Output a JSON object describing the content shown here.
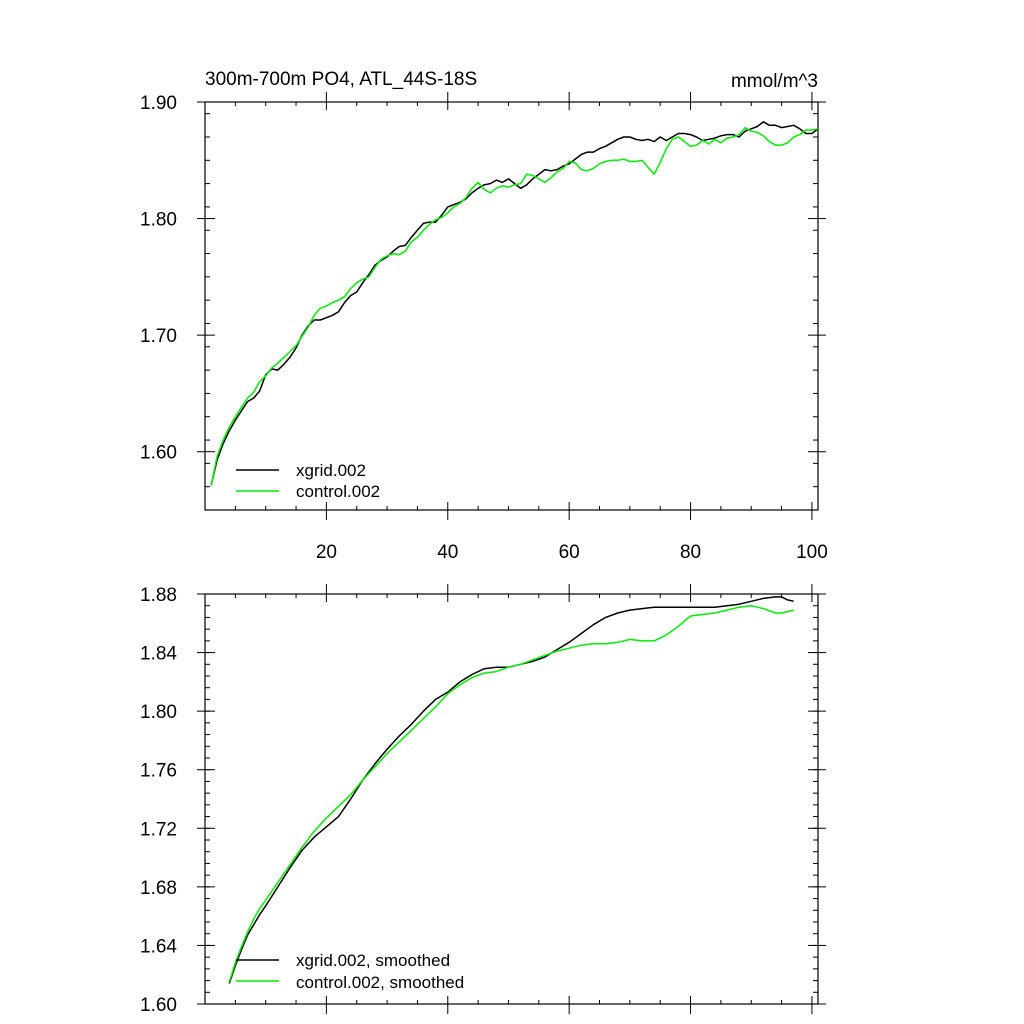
{
  "chart_data": [
    {
      "type": "line",
      "title": "300m-700m PO4, ATL_44S-18S",
      "units": "mmol/m^3",
      "xlabel": "",
      "ylabel": "",
      "xlim": [
        0,
        101
      ],
      "ylim": [
        1.55,
        1.9
      ],
      "xticks": [
        20,
        40,
        60,
        80,
        100
      ],
      "yticks": [
        1.6,
        1.7,
        1.8,
        1.9
      ],
      "ytick_labels": [
        "1.60",
        "1.70",
        "1.80",
        "1.90"
      ],
      "xtick_labels": [
        "20",
        "40",
        "60",
        "80",
        "100"
      ],
      "legend_position": "bottom-left",
      "series": [
        {
          "name": "xgrid.002",
          "color": "#000000",
          "x": [
            1,
            2,
            3,
            4,
            5,
            6,
            7,
            8,
            9,
            10,
            11,
            12,
            13,
            14,
            15,
            16,
            17,
            18,
            19,
            20,
            21,
            22,
            23,
            24,
            25,
            26,
            27,
            28,
            29,
            30,
            31,
            32,
            33,
            34,
            35,
            36,
            37,
            38,
            39,
            40,
            41,
            42,
            43,
            44,
            45,
            46,
            47,
            48,
            49,
            50,
            51,
            52,
            53,
            54,
            55,
            56,
            57,
            58,
            59,
            60,
            61,
            62,
            63,
            64,
            65,
            66,
            67,
            68,
            69,
            70,
            71,
            72,
            73,
            74,
            75,
            76,
            77,
            78,
            79,
            80,
            81,
            82,
            83,
            84,
            85,
            86,
            87,
            88,
            89,
            90,
            91,
            92,
            93,
            94,
            95,
            96,
            97,
            98,
            99,
            100,
            101
          ],
          "y": [
            1.571,
            1.593,
            1.607,
            1.618,
            1.627,
            1.635,
            1.643,
            1.646,
            1.652,
            1.666,
            1.671,
            1.67,
            1.675,
            1.681,
            1.689,
            1.7,
            1.708,
            1.713,
            1.713,
            1.715,
            1.717,
            1.72,
            1.728,
            1.734,
            1.737,
            1.745,
            1.752,
            1.76,
            1.764,
            1.767,
            1.772,
            1.776,
            1.777,
            1.784,
            1.79,
            1.796,
            1.797,
            1.797,
            1.803,
            1.81,
            1.812,
            1.814,
            1.817,
            1.822,
            1.826,
            1.829,
            1.83,
            1.833,
            1.831,
            1.834,
            1.83,
            1.826,
            1.829,
            1.834,
            1.838,
            1.842,
            1.841,
            1.842,
            1.845,
            1.847,
            1.851,
            1.855,
            1.857,
            1.857,
            1.86,
            1.862,
            1.865,
            1.868,
            1.87,
            1.87,
            1.868,
            1.867,
            1.868,
            1.866,
            1.87,
            1.867,
            1.87,
            1.873,
            1.873,
            1.872,
            1.87,
            1.867,
            1.868,
            1.869,
            1.871,
            1.872,
            1.872,
            1.87,
            1.875,
            1.877,
            1.879,
            1.883,
            1.88,
            1.88,
            1.878,
            1.879,
            1.88,
            1.877,
            1.873,
            1.873,
            1.877
          ]
        },
        {
          "name": "control.002",
          "color": "#00ee00",
          "x": [
            1,
            2,
            3,
            4,
            5,
            6,
            7,
            8,
            9,
            10,
            11,
            12,
            13,
            14,
            15,
            16,
            17,
            18,
            19,
            20,
            21,
            22,
            23,
            24,
            25,
            26,
            27,
            28,
            29,
            30,
            31,
            32,
            33,
            34,
            35,
            36,
            37,
            38,
            39,
            40,
            41,
            42,
            43,
            44,
            45,
            46,
            47,
            48,
            49,
            50,
            51,
            52,
            53,
            54,
            55,
            56,
            57,
            58,
            59,
            60,
            61,
            62,
            63,
            64,
            65,
            66,
            67,
            68,
            69,
            70,
            71,
            72,
            73,
            74,
            75,
            76,
            77,
            78,
            79,
            80,
            81,
            82,
            83,
            84,
            85,
            86,
            87,
            88,
            89,
            90,
            91,
            92,
            93,
            94,
            95,
            96,
            97,
            98,
            99,
            100,
            101
          ],
          "y": [
            1.571,
            1.596,
            1.61,
            1.621,
            1.63,
            1.638,
            1.646,
            1.651,
            1.66,
            1.665,
            1.672,
            1.676,
            1.681,
            1.686,
            1.691,
            1.699,
            1.707,
            1.717,
            1.723,
            1.725,
            1.728,
            1.73,
            1.733,
            1.74,
            1.745,
            1.748,
            1.75,
            1.758,
            1.765,
            1.768,
            1.77,
            1.769,
            1.772,
            1.78,
            1.784,
            1.79,
            1.795,
            1.799,
            1.801,
            1.805,
            1.81,
            1.813,
            1.818,
            1.826,
            1.831,
            1.825,
            1.822,
            1.826,
            1.828,
            1.827,
            1.829,
            1.83,
            1.838,
            1.837,
            1.834,
            1.831,
            1.835,
            1.84,
            1.843,
            1.849,
            1.848,
            1.842,
            1.841,
            1.843,
            1.847,
            1.849,
            1.85,
            1.85,
            1.851,
            1.849,
            1.849,
            1.85,
            1.844,
            1.838,
            1.848,
            1.86,
            1.868,
            1.87,
            1.866,
            1.862,
            1.863,
            1.867,
            1.864,
            1.868,
            1.865,
            1.869,
            1.87,
            1.872,
            1.878,
            1.875,
            1.874,
            1.871,
            1.866,
            1.863,
            1.863,
            1.865,
            1.87,
            1.872,
            1.876,
            1.876,
            1.877
          ]
        }
      ]
    },
    {
      "type": "line",
      "title": "",
      "xlabel": "",
      "ylabel": "",
      "xlim": [
        0,
        101
      ],
      "ylim": [
        1.6,
        1.88
      ],
      "xticks": [
        20,
        40,
        60,
        80,
        100
      ],
      "yticks": [
        1.6,
        1.64,
        1.68,
        1.72,
        1.76,
        1.8,
        1.84,
        1.88
      ],
      "ytick_labels": [
        "1.60",
        "1.64",
        "1.68",
        "1.72",
        "1.76",
        "1.80",
        "1.84",
        "1.88"
      ],
      "legend_position": "bottom-left",
      "series": [
        {
          "name": "xgrid.002, smoothed",
          "color": "#000000",
          "x": [
            4,
            5,
            6,
            7,
            8,
            9,
            10,
            12,
            14,
            16,
            18,
            20,
            22,
            24,
            26,
            28,
            30,
            32,
            34,
            36,
            38,
            40,
            42,
            44,
            46,
            48,
            50,
            52,
            54,
            56,
            58,
            60,
            62,
            64,
            66,
            68,
            70,
            72,
            74,
            76,
            78,
            80,
            82,
            84,
            86,
            88,
            90,
            92,
            94,
            95,
            96,
            97
          ],
          "y": [
            1.614,
            1.626,
            1.637,
            1.647,
            1.654,
            1.661,
            1.667,
            1.68,
            1.693,
            1.705,
            1.714,
            1.721,
            1.728,
            1.74,
            1.753,
            1.764,
            1.774,
            1.783,
            1.791,
            1.8,
            1.808,
            1.813,
            1.82,
            1.825,
            1.829,
            1.83,
            1.83,
            1.832,
            1.834,
            1.837,
            1.842,
            1.847,
            1.853,
            1.859,
            1.864,
            1.867,
            1.869,
            1.87,
            1.871,
            1.871,
            1.871,
            1.871,
            1.871,
            1.871,
            1.872,
            1.873,
            1.875,
            1.877,
            1.878,
            1.878,
            1.876,
            1.875
          ]
        },
        {
          "name": "control.002, smoothed",
          "color": "#00ee00",
          "x": [
            4,
            5,
            6,
            7,
            8,
            9,
            10,
            12,
            14,
            16,
            18,
            20,
            22,
            24,
            26,
            28,
            30,
            32,
            34,
            36,
            38,
            40,
            42,
            44,
            46,
            48,
            50,
            52,
            54,
            56,
            58,
            60,
            62,
            64,
            66,
            68,
            70,
            72,
            74,
            76,
            78,
            80,
            82,
            84,
            86,
            88,
            90,
            92,
            94,
            95,
            96,
            97
          ],
          "y": [
            1.615,
            1.628,
            1.639,
            1.649,
            1.658,
            1.665,
            1.671,
            1.683,
            1.695,
            1.707,
            1.718,
            1.727,
            1.735,
            1.743,
            1.753,
            1.762,
            1.771,
            1.779,
            1.787,
            1.795,
            1.803,
            1.812,
            1.818,
            1.823,
            1.826,
            1.827,
            1.83,
            1.832,
            1.835,
            1.838,
            1.841,
            1.843,
            1.845,
            1.846,
            1.846,
            1.847,
            1.849,
            1.848,
            1.848,
            1.852,
            1.858,
            1.865,
            1.866,
            1.867,
            1.869,
            1.871,
            1.872,
            1.87,
            1.867,
            1.867,
            1.868,
            1.869
          ]
        }
      ]
    }
  ]
}
